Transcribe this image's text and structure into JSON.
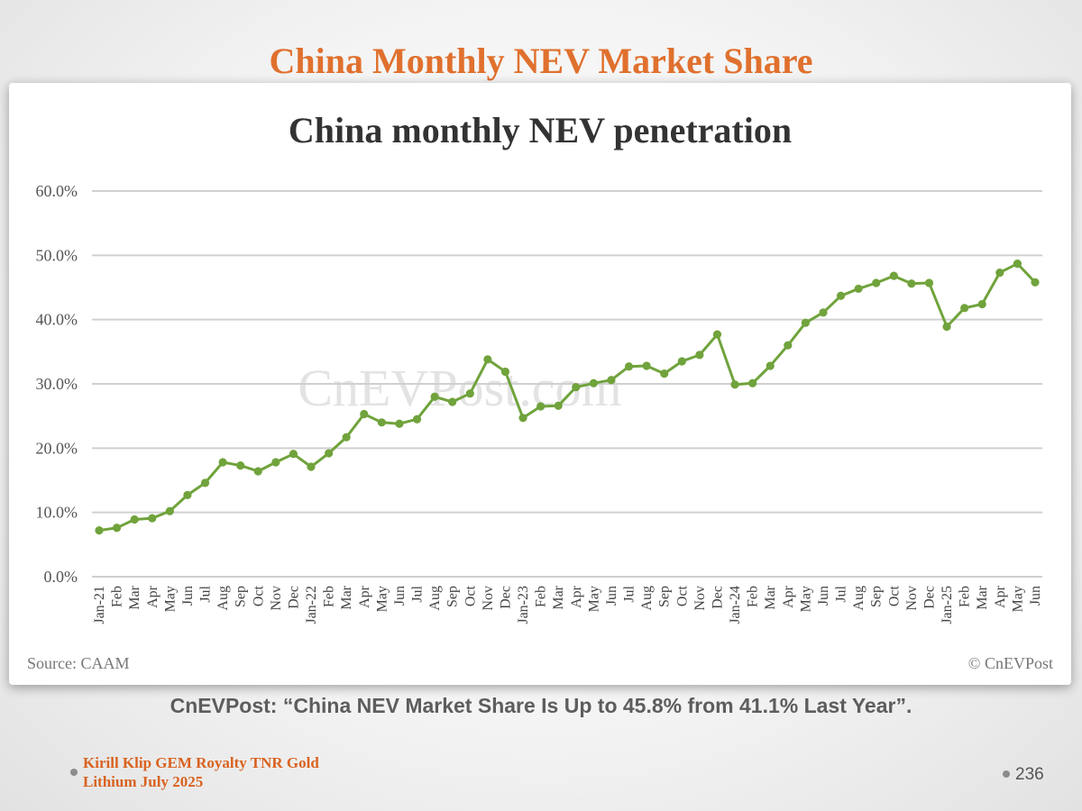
{
  "slide": {
    "title": "China Monthly NEV Market Share",
    "caption": "CnEVPost: “China NEV Market Share Is Up to 45.8% from 41.1% Last Year”.",
    "footer_line1": "Kirill Klip GEM Royalty TNR Gold",
    "footer_line2": "Lithium July 2025",
    "page_number": "236"
  },
  "chart_data": {
    "type": "line",
    "title": "China monthly NEV penetration",
    "source": "Source: CAAM",
    "credit": "© CnEVPost",
    "watermark": "CnEVPost.com",
    "ylim": [
      0,
      60
    ],
    "yticks": [
      "0.0%",
      "10.0%",
      "20.0%",
      "30.0%",
      "40.0%",
      "50.0%",
      "60.0%"
    ],
    "grid": true,
    "color": "#70a33c",
    "categories": [
      "Jan-21",
      "Feb",
      "Mar",
      "Apr",
      "May",
      "Jun",
      "Jul",
      "Aug",
      "Sep",
      "Oct",
      "Nov",
      "Dec",
      "Jan-22",
      "Feb",
      "Mar",
      "Apr",
      "May",
      "Jun",
      "Jul",
      "Aug",
      "Sep",
      "Oct",
      "Nov",
      "Dec",
      "Jan-23",
      "Feb",
      "Mar",
      "Apr",
      "May",
      "Jun",
      "Jul",
      "Aug",
      "Sep",
      "Oct",
      "Nov",
      "Dec",
      "Jan-24",
      "Feb",
      "Mar",
      "Apr",
      "May",
      "Jun",
      "Jul",
      "Aug",
      "Sep",
      "Oct",
      "Nov",
      "Dec",
      "Jan-25",
      "Feb",
      "Mar",
      "Apr",
      "May",
      "Jun"
    ],
    "values": [
      7.2,
      7.6,
      8.9,
      9.1,
      10.2,
      12.7,
      14.6,
      17.8,
      17.3,
      16.4,
      17.8,
      19.1,
      17.1,
      19.2,
      21.7,
      25.3,
      24.0,
      23.8,
      24.5,
      28.0,
      27.2,
      28.5,
      33.8,
      31.9,
      24.7,
      26.5,
      26.6,
      29.5,
      30.1,
      30.6,
      32.7,
      32.8,
      31.6,
      33.5,
      34.5,
      37.7,
      29.9,
      30.1,
      32.8,
      36.0,
      39.5,
      41.1,
      43.7,
      44.8,
      45.7,
      46.8,
      45.6,
      45.7,
      38.9,
      41.8,
      42.4,
      47.3,
      48.7,
      45.8
    ]
  }
}
